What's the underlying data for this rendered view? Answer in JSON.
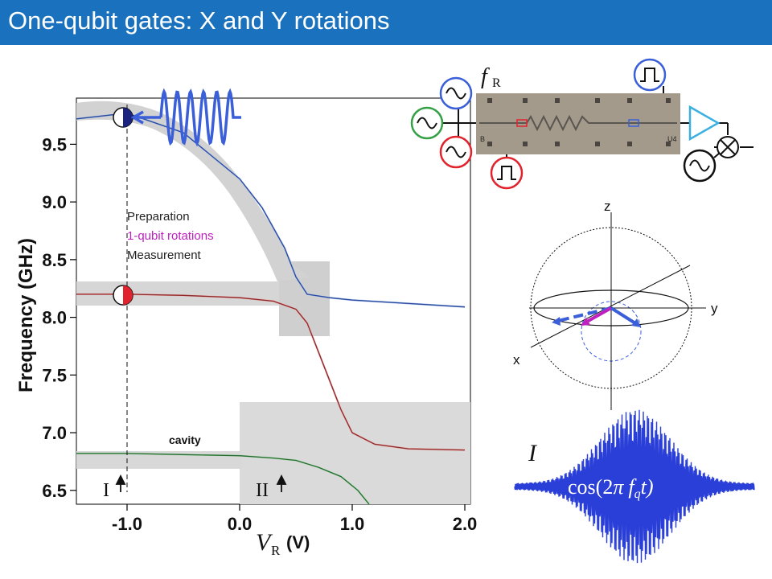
{
  "title": "One-qubit gates: X and Y rotations",
  "chart_data": {
    "type": "line",
    "title": "",
    "xlabel_symbol": "V",
    "xlabel_subscript": "R",
    "xlabel_unit": "(V)",
    "ylabel": "Frequency (GHz)",
    "xlim": [
      -1.45,
      2.05
    ],
    "ylim": [
      6.38,
      9.9
    ],
    "x_ticks": [
      "-1.0",
      "0.0",
      "1.0",
      "2.0"
    ],
    "y_ticks": [
      "6.5",
      "7.0",
      "7.5",
      "8.0",
      "8.5",
      "9.0",
      "9.5"
    ],
    "series": [
      {
        "name": "",
        "color": "#2a4a9a",
        "x": [
          -1.45,
          -1.0,
          -0.5,
          0.0,
          0.2,
          0.4,
          0.5,
          0.6,
          0.8,
          1.0,
          1.5,
          2.0
        ],
        "y": [
          9.72,
          9.77,
          9.6,
          9.2,
          8.95,
          8.6,
          8.35,
          8.2,
          8.17,
          8.15,
          8.12,
          8.09
        ]
      },
      {
        "name": "",
        "color": "#8a2a2a",
        "x": [
          -1.45,
          -1.0,
          -0.5,
          0.0,
          0.3,
          0.5,
          0.6,
          0.7,
          0.8,
          0.9,
          1.0,
          1.2,
          1.5,
          2.0
        ],
        "y": [
          8.2,
          8.2,
          8.19,
          8.17,
          8.14,
          8.07,
          7.95,
          7.7,
          7.45,
          7.2,
          7.0,
          6.9,
          6.86,
          6.85
        ]
      },
      {
        "name": "",
        "color": "#2a6a32",
        "x": [
          -1.45,
          -1.0,
          -0.5,
          0.0,
          0.3,
          0.5,
          0.7,
          0.9,
          1.05,
          1.15
        ],
        "y": [
          6.82,
          6.82,
          6.81,
          6.8,
          6.78,
          6.76,
          6.7,
          6.62,
          6.5,
          6.38
        ]
      }
    ],
    "annotations": {
      "legend": [
        "Preparation",
        "1-qubit rotations",
        "Measurement"
      ],
      "cavity": "cavity",
      "marker_i": "I",
      "marker_ii": "II",
      "marker_x": -1.0
    }
  },
  "circuit": {
    "label_symbol": "f",
    "label_subscript": "R",
    "chip_label_left": "B",
    "chip_label_right": "U4"
  },
  "bloch": {
    "axis_z": "z",
    "axis_y": "y",
    "axis_x": "x"
  },
  "pulse": {
    "label": "I",
    "formula_prefix": "cos(2",
    "formula_pi": "π",
    "formula_f": "f",
    "formula_sub": "q",
    "formula_suffix": "t)"
  },
  "colors": {
    "title_bar": "#1a72be",
    "blue": "#3a5fd8",
    "magenta": "#c020c0",
    "red": "#e0232c",
    "green": "#35a045"
  }
}
